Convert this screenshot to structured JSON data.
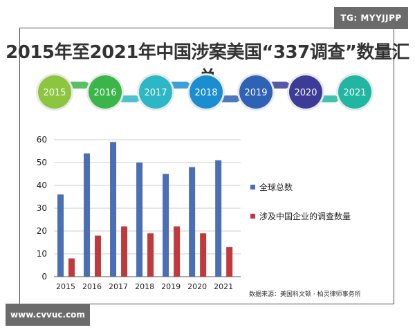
{
  "watermarks": {
    "top_right": "TG: MYYJJPP",
    "bottom_left": "www.cvvuc.com"
  },
  "header": {
    "title": "2015年至2021年中国涉案美国“337调查”数量汇总"
  },
  "timeline": {
    "years": [
      "2015",
      "2016",
      "2017",
      "2018",
      "2019",
      "2020",
      "2021"
    ],
    "colors": [
      "#8cc63f",
      "#39b54a",
      "#2bb7c6",
      "#1b8ed0",
      "#2e62b5",
      "#3c3b97",
      "#1fb7a1"
    ]
  },
  "legend": {
    "items": [
      {
        "label": "全球总数",
        "color": "#4a6fb5"
      },
      {
        "label": "涉及中国企业的调查数量",
        "color": "#c0393c"
      }
    ]
  },
  "source": "数据来源：美国科文顿 · 柏灵律师事务所",
  "chart_data": {
    "type": "bar",
    "categories": [
      "2015",
      "2016",
      "2017",
      "2018",
      "2019",
      "2020",
      "2021"
    ],
    "series": [
      {
        "name": "全球总数",
        "values": [
          36,
          54,
          59,
          50,
          45,
          48,
          51
        ],
        "color": "#4a6fb5"
      },
      {
        "name": "涉及中国企业的调查数量",
        "values": [
          8,
          18,
          22,
          19,
          22,
          19,
          13
        ],
        "color": "#c0393c"
      }
    ],
    "ylim": [
      0,
      60
    ],
    "yticks": [
      0,
      10,
      20,
      30,
      40,
      50,
      60
    ],
    "grid": true,
    "legend_position": "right"
  }
}
